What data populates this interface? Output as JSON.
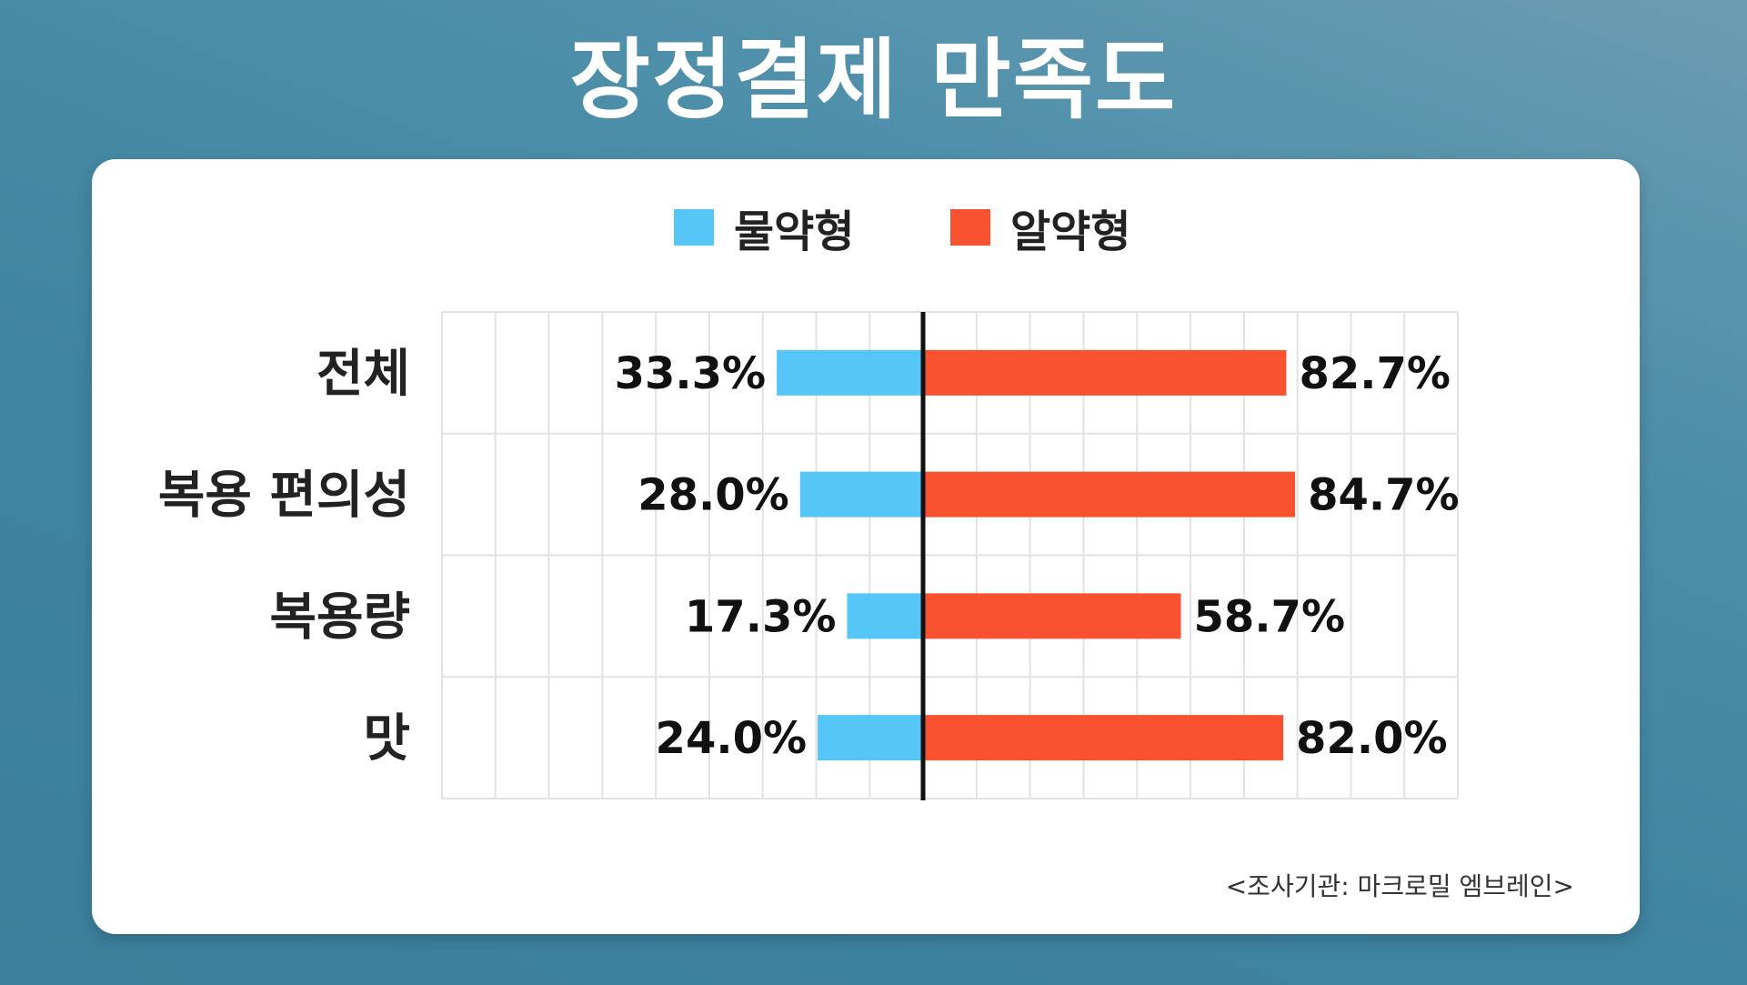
{
  "title": "장정결제 만족도",
  "source_note": "<조사기관: 마크로밀 엠브레인>",
  "colors": {
    "background": "#4386a3",
    "water_type": "#56c6f7",
    "tablet_type": "#f85231",
    "grid": "#e2e2e2",
    "axis": "#111111"
  },
  "chart_data": {
    "type": "bar",
    "orientation": "horizontal-diverging",
    "title": "장정결제 만족도",
    "categories": [
      "전체",
      "복용 편의성",
      "복용량",
      "맛"
    ],
    "series": [
      {
        "name": "물약형",
        "color": "#56c6f7",
        "direction": "left",
        "values": [
          33.3,
          28.0,
          17.3,
          24.0
        ],
        "labels": [
          "33.3%",
          "28.0%",
          "17.3%",
          "24.0%"
        ]
      },
      {
        "name": "알약형",
        "color": "#f85231",
        "direction": "right",
        "values": [
          82.7,
          84.7,
          58.7,
          82.0
        ],
        "labels": [
          "82.7%",
          "84.7%",
          "58.7%",
          "82.0%"
        ]
      }
    ],
    "xlim_left": [
      0,
      100
    ],
    "xlim_right": [
      0,
      100
    ],
    "grid": true,
    "legend_position": "top-center"
  }
}
